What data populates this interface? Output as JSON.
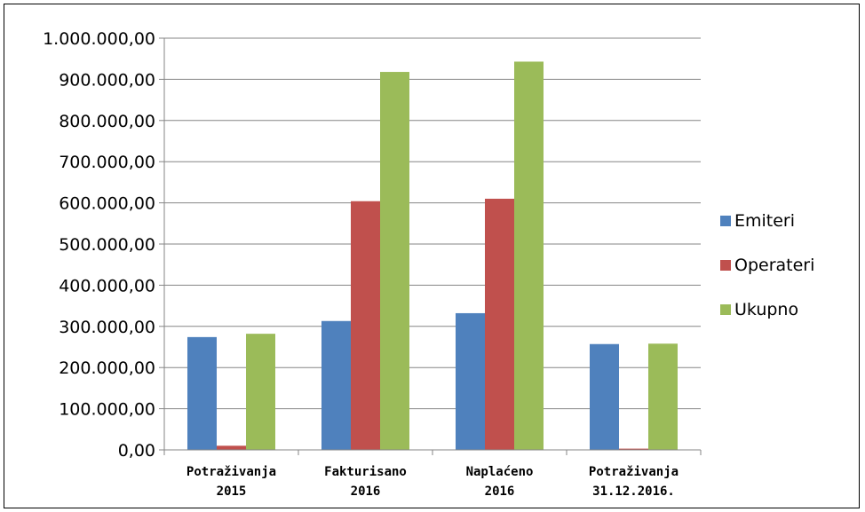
{
  "chart_data": {
    "type": "bar",
    "categories": [
      [
        "Potraživanja",
        "2015"
      ],
      [
        "Fakturisano",
        "2016"
      ],
      [
        "Naplaćeno",
        "2016"
      ],
      [
        "Potraživanja",
        "31.12.2016."
      ]
    ],
    "series": [
      {
        "name": "Emiteri",
        "color": "#4f81bd",
        "values": [
          274000,
          313000,
          332000,
          257000
        ]
      },
      {
        "name": "Operateri",
        "color": "#c0504d",
        "values": [
          10000,
          604000,
          610000,
          3000
        ]
      },
      {
        "name": "Ukupno",
        "color": "#9bbb59",
        "values": [
          282000,
          918000,
          943000,
          258000
        ]
      }
    ],
    "ylim": [
      0,
      1000000
    ],
    "yticks": [
      {
        "value": 0,
        "label": "0,00"
      },
      {
        "value": 100000,
        "label": "100.000,00"
      },
      {
        "value": 200000,
        "label": "200.000,00"
      },
      {
        "value": 300000,
        "label": "300.000,00"
      },
      {
        "value": 400000,
        "label": "400.000,00"
      },
      {
        "value": 500000,
        "label": "500.000,00"
      },
      {
        "value": 600000,
        "label": "600.000,00"
      },
      {
        "value": 700000,
        "label": "700.000,00"
      },
      {
        "value": 800000,
        "label": "800.000,00"
      },
      {
        "value": 900000,
        "label": "900.000,00"
      },
      {
        "value": 1000000,
        "label": "1.000.000,00"
      }
    ],
    "grid": true,
    "legend_position": "right",
    "gridline_color": "#868686",
    "axis_color": "#868686"
  }
}
